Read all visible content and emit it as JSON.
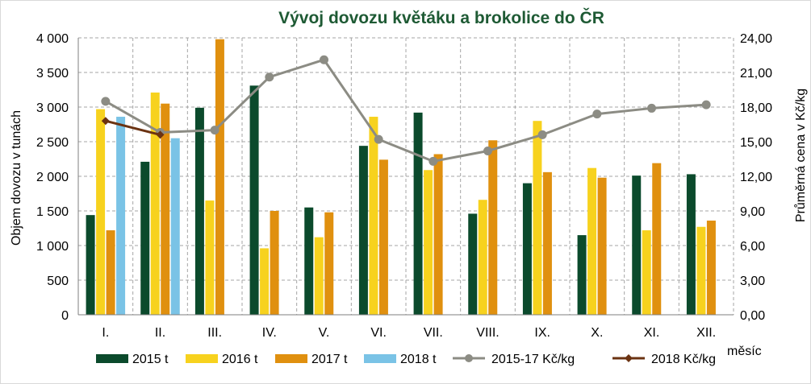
{
  "chart_data": {
    "type": "bar",
    "title": "Vývoj dovozu květáku a brokolice do ČR",
    "xlabel": "měsíc",
    "ylabel": "Objem dovozu v tunách",
    "y2label": "Průměrná cena v Kč/kg",
    "ylim": [
      0,
      4000
    ],
    "y2lim": [
      0,
      24
    ],
    "yticks": [
      "0",
      "500",
      "1 000",
      "1 500",
      "2 000",
      "2 500",
      "3 000",
      "3 500",
      "4 000"
    ],
    "y2ticks": [
      "0,00",
      "3,00",
      "6,00",
      "9,00",
      "12,00",
      "15,00",
      "18,00",
      "21,00",
      "24,00"
    ],
    "grid": true,
    "legend_position": "bottom",
    "categories": [
      "I.",
      "II.",
      "III.",
      "IV.",
      "V.",
      "VI.",
      "VII.",
      "VIII.",
      "IX.",
      "X.",
      "XI.",
      "XII."
    ],
    "series": [
      {
        "name": "2015 t",
        "type": "bar",
        "axis": "left",
        "color": "#0b4a2c",
        "values": [
          1440,
          2210,
          2990,
          3310,
          1550,
          2440,
          2920,
          1460,
          1900,
          1150,
          2010,
          2030
        ]
      },
      {
        "name": "2016 t",
        "type": "bar",
        "axis": "left",
        "color": "#f7d21e",
        "values": [
          2970,
          3210,
          1650,
          960,
          1120,
          2860,
          2090,
          1660,
          2800,
          2120,
          1220,
          1270
        ]
      },
      {
        "name": "2017 t",
        "type": "bar",
        "axis": "left",
        "color": "#e0900f",
        "values": [
          1220,
          3050,
          3980,
          1500,
          1480,
          2240,
          2320,
          2520,
          2060,
          1980,
          2190,
          1360
        ]
      },
      {
        "name": "2018 t",
        "type": "bar",
        "axis": "left",
        "color": "#7ac3e6",
        "values": [
          2860,
          2550,
          null,
          null,
          null,
          null,
          null,
          null,
          null,
          null,
          null,
          null
        ]
      },
      {
        "name": "2015-17 Kč/kg",
        "type": "line",
        "axis": "right",
        "color": "#8c8c84",
        "marker": "circle",
        "values": [
          18.5,
          15.8,
          16.0,
          20.6,
          22.1,
          15.2,
          13.3,
          14.2,
          15.6,
          17.4,
          17.9,
          18.2
        ]
      },
      {
        "name": "2018 Kč/kg",
        "type": "line",
        "axis": "right",
        "color": "#6b3312",
        "marker": "diamond",
        "values": [
          16.8,
          15.6,
          null,
          null,
          null,
          null,
          null,
          null,
          null,
          null,
          null,
          null
        ]
      }
    ]
  }
}
